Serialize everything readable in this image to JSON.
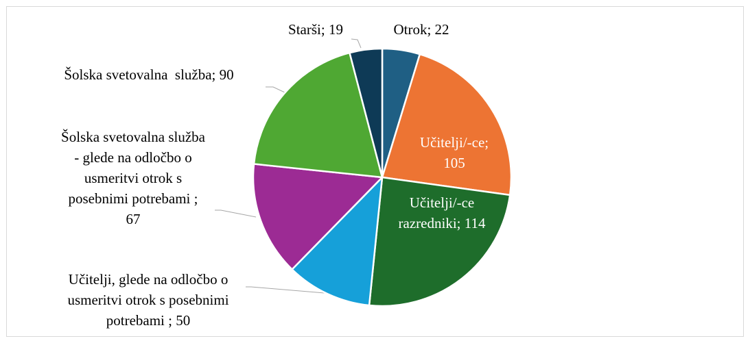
{
  "chart_data": {
    "type": "pie",
    "values": [
      22,
      105,
      114,
      50,
      67,
      90,
      19
    ],
    "value_labels": [
      [
        "Otrok; 22"
      ],
      [
        "Učitelji/-ce;",
        "105"
      ],
      [
        "Učitelji/-ce",
        "razredniki; 114"
      ],
      [
        "Učitelji, glede na odločbo o",
        "usmeritvi otrok s posebnimi",
        "potrebami ; 50"
      ],
      [
        "Šolska svetovalna služba",
        "- glede na odločbo o",
        "usmeritvi otrok s",
        "posebnimi potrebami ;",
        "67"
      ],
      [
        "Šolska svetovalna  služba; 90"
      ],
      [
        "Starši; 19"
      ]
    ],
    "colors": [
      "#1f5f84",
      "#ed7433",
      "#1e6d2b",
      "#16a0d9",
      "#9c2b94",
      "#4fa833",
      "#0e3a56"
    ]
  }
}
